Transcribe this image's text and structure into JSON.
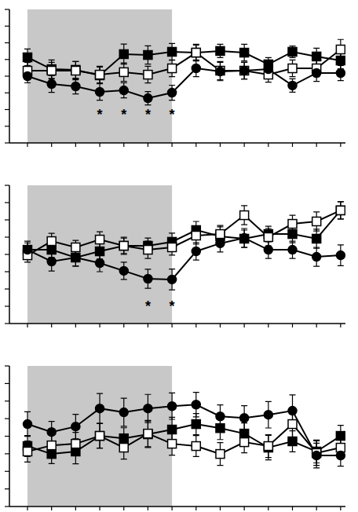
{
  "chart_data": [
    {
      "type": "line",
      "x": [
        1,
        2,
        3,
        4,
        5,
        6,
        7,
        8,
        9,
        10,
        11,
        12,
        13,
        14
      ],
      "xlim": [
        0.25,
        14.2
      ],
      "xticks": [
        1,
        2,
        3,
        4,
        5,
        6,
        7,
        8,
        9,
        10,
        11,
        12,
        13,
        14
      ],
      "ylim": [
        0,
        8
      ],
      "yticks": [
        0,
        1,
        2,
        3,
        4,
        5,
        6,
        7,
        8
      ],
      "tick_labels": false,
      "grid": false,
      "shaded_region": [
        1,
        7
      ],
      "annotations": [
        {
          "x": 4,
          "y": 1.8,
          "text": "*"
        },
        {
          "x": 5,
          "y": 1.8,
          "text": "*"
        },
        {
          "x": 6,
          "y": 1.8,
          "text": "*"
        },
        {
          "x": 7,
          "y": 1.8,
          "text": "*"
        }
      ],
      "series": [
        {
          "color": "#000000",
          "marker": "square",
          "values": [
            5.13,
            4.42,
            4.38,
            4.05,
            5.32,
            5.27,
            5.46,
            5.41,
            5.51,
            5.41,
            4.71,
            5.46,
            5.18,
            4.94
          ],
          "errors": [
            0.5,
            0.55,
            0.5,
            0.5,
            0.6,
            0.55,
            0.5,
            0.45,
            0.4,
            0.5,
            0.4,
            0.35,
            0.5,
            0.5
          ]
        },
        {
          "color": "#ffffff",
          "marker": "square-open",
          "values": [
            4.33,
            4.33,
            4.33,
            4.09,
            4.24,
            4.09,
            4.47,
            5.41,
            4.33,
            4.33,
            4.09,
            4.47,
            4.47,
            5.6
          ],
          "errors": [
            0.5,
            0.5,
            0.55,
            0.5,
            0.55,
            0.5,
            0.5,
            0.5,
            0.55,
            0.5,
            0.45,
            0.5,
            0.5,
            0.6
          ]
        },
        {
          "color": "#000000",
          "marker": "circle",
          "values": [
            4.0,
            3.53,
            3.39,
            3.06,
            3.15,
            2.68,
            3.01,
            4.47,
            4.28,
            4.33,
            4.42,
            3.44,
            4.19,
            4.19
          ],
          "errors": [
            0.4,
            0.5,
            0.45,
            0.5,
            0.45,
            0.4,
            0.45,
            0.5,
            0.55,
            0.5,
            0.45,
            0.4,
            0.5,
            0.45
          ]
        }
      ]
    },
    {
      "type": "line",
      "x": [
        1,
        2,
        3,
        4,
        5,
        6,
        7,
        8,
        9,
        10,
        11,
        12,
        13,
        14
      ],
      "xlim": [
        0.25,
        14.2
      ],
      "xticks": [
        1,
        2,
        3,
        4,
        5,
        6,
        7,
        8,
        9,
        10,
        11,
        12,
        13,
        14
      ],
      "ylim": [
        0,
        8
      ],
      "yticks": [
        0,
        1,
        2,
        3,
        4,
        5,
        6,
        7,
        8
      ],
      "tick_labels": false,
      "grid": false,
      "shaded_region": [
        1,
        7
      ],
      "annotations": [
        {
          "x": 6,
          "y": 1.1,
          "text": "*"
        },
        {
          "x": 7,
          "y": 1.1,
          "text": "*"
        }
      ],
      "series": [
        {
          "color": "#000000",
          "marker": "square",
          "values": [
            4.27,
            4.27,
            3.82,
            4.18,
            4.5,
            4.5,
            4.73,
            5.41,
            5.05,
            4.91,
            5.18,
            5.18,
            4.91,
            6.55
          ],
          "errors": [
            0.4,
            0.45,
            0.5,
            0.45,
            0.5,
            0.45,
            0.5,
            0.5,
            0.55,
            0.5,
            0.45,
            0.5,
            0.55,
            0.5
          ]
        },
        {
          "color": "#ffffff",
          "marker": "square-open",
          "values": [
            3.95,
            4.77,
            4.41,
            4.86,
            4.5,
            4.27,
            4.41,
            5.09,
            5.18,
            6.27,
            5.0,
            5.77,
            5.91,
            6.55
          ],
          "errors": [
            0.4,
            0.45,
            0.4,
            0.45,
            0.45,
            0.5,
            0.45,
            0.5,
            0.5,
            0.55,
            0.5,
            0.5,
            0.55,
            0.5
          ]
        },
        {
          "color": "#000000",
          "marker": "circle",
          "values": [
            4.27,
            3.59,
            3.82,
            3.5,
            3.05,
            2.59,
            2.55,
            4.18,
            4.64,
            4.95,
            4.27,
            4.27,
            3.86,
            3.95
          ],
          "errors": [
            0.5,
            0.55,
            0.5,
            0.5,
            0.5,
            0.55,
            0.6,
            0.5,
            0.5,
            0.55,
            0.5,
            0.5,
            0.55,
            0.6
          ]
        }
      ]
    },
    {
      "type": "line",
      "x": [
        1,
        2,
        3,
        4,
        5,
        6,
        7,
        8,
        9,
        10,
        11,
        12,
        13,
        14
      ],
      "xlim": [
        0.25,
        14.2
      ],
      "xticks": [
        1,
        2,
        3,
        4,
        5,
        6,
        7,
        8,
        9,
        10,
        11,
        12,
        13,
        14
      ],
      "ylim": [
        0,
        8
      ],
      "yticks": [
        0,
        1,
        2,
        3,
        4,
        5,
        6,
        7,
        8
      ],
      "tick_labels": false,
      "grid": false,
      "shaded_region": [
        1,
        7
      ],
      "series": [
        {
          "color": "#000000",
          "marker": "square",
          "values": [
            3.44,
            2.99,
            3.13,
            4.02,
            3.88,
            4.11,
            4.38,
            4.69,
            4.46,
            4.15,
            3.35,
            3.71,
            3.13,
            4.02
          ],
          "errors": [
            0.6,
            0.55,
            0.7,
            0.7,
            0.6,
            0.75,
            0.7,
            0.6,
            0.65,
            0.6,
            0.7,
            0.6,
            0.65,
            0.6
          ]
        },
        {
          "color": "#ffffff",
          "marker": "square-open",
          "values": [
            3.13,
            3.48,
            3.57,
            4.02,
            3.35,
            4.15,
            3.57,
            3.44,
            2.99,
            3.66,
            3.44,
            4.69,
            3.04,
            3.35
          ],
          "errors": [
            0.6,
            0.6,
            0.65,
            0.7,
            0.65,
            0.75,
            0.65,
            0.6,
            0.65,
            0.6,
            0.65,
            0.8,
            0.7,
            0.6
          ]
        },
        {
          "color": "#000000",
          "marker": "circle",
          "values": [
            4.69,
            4.24,
            4.55,
            5.58,
            5.36,
            5.58,
            5.71,
            5.8,
            5.13,
            5.04,
            5.22,
            5.45,
            2.9,
            2.9
          ],
          "errors": [
            0.7,
            0.6,
            0.7,
            0.85,
            0.8,
            0.8,
            0.75,
            0.7,
            0.65,
            0.7,
            0.75,
            0.9,
            0.7,
            0.6
          ]
        }
      ]
    }
  ]
}
